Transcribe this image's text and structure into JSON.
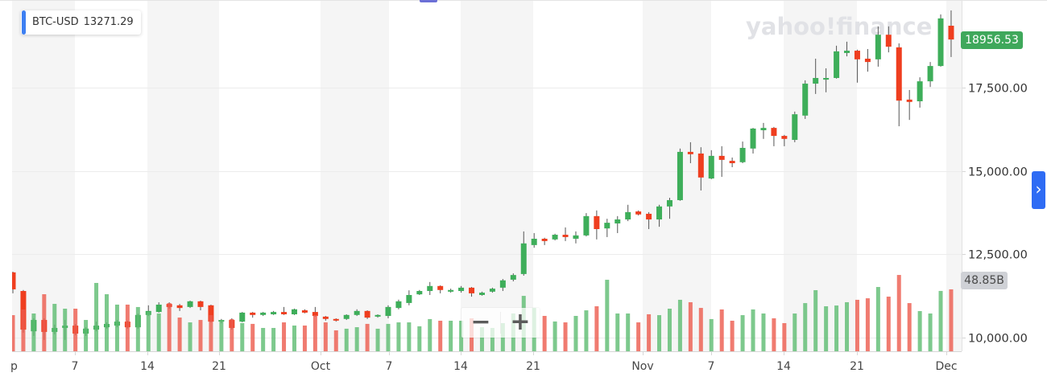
{
  "tooltip": {
    "symbol": "BTC-USD",
    "value": "13271.29"
  },
  "watermark": "yahoo!finance",
  "price_badge": {
    "value": "18956.53"
  },
  "volume_badge": {
    "value": "48.85B"
  },
  "zoom_controls": {
    "zoom_out": "−",
    "zoom_in": "+"
  },
  "nav_button": {
    "icon": "chevron-right-icon",
    "glyph": "›"
  },
  "colors": {
    "up": "#3eae5a",
    "down": "#ef3e1f",
    "wick": "#555555",
    "band": "#f5f5f5",
    "grid": "#ececec",
    "axis": "#d6d6d6",
    "axis_text": "#464646",
    "volume_up": "#5cbb71",
    "volume_down": "#ec5a4c",
    "watermark": "#e1e2e6",
    "price_badge": "#3fa85b",
    "volume_badge": "#cfd1d6",
    "accent": "#3d7ff2",
    "nav_button": "#2f6cf4",
    "top_handle": "#6b6fd6"
  },
  "chart_data": {
    "type": "candlestick",
    "title": "BTC-USD",
    "xlabel": "",
    "ylabel": "",
    "ylim": [
      9589,
      20143
    ],
    "grid": true,
    "legend": {
      "position": "top-left",
      "entries": [
        "BTC-USD 13271.29"
      ]
    },
    "y_ticks": [
      {
        "label": "17,500.00",
        "value": 17500
      },
      {
        "label": "15,000.00",
        "value": 15000
      },
      {
        "label": "12,500.00",
        "value": 12500
      },
      {
        "label": "10,000.00",
        "value": 10000
      }
    ],
    "x_ticks": [
      {
        "label": "p",
        "x": 13,
        "anchor": "start",
        "tick": false
      },
      {
        "label": "7",
        "x": 93
      },
      {
        "label": "14",
        "x": 183
      },
      {
        "label": "21",
        "x": 272
      },
      {
        "label": "Oct",
        "x": 398
      },
      {
        "label": "7",
        "x": 483
      },
      {
        "label": "14",
        "x": 572
      },
      {
        "label": "21",
        "x": 662
      },
      {
        "label": "Nov",
        "x": 798
      },
      {
        "label": "7",
        "x": 883
      },
      {
        "label": "14",
        "x": 973
      },
      {
        "label": "21",
        "x": 1064
      },
      {
        "label": "Dec",
        "x": 1175
      }
    ],
    "last_price": 18956.53,
    "last_volume": "48.85B",
    "series": [
      {
        "name": "BTC-USD",
        "kind": "ohlc",
        "fields": [
          "open",
          "high",
          "low",
          "close"
        ],
        "values": [
          [
            11960,
            11980,
            11330,
            11450
          ],
          [
            11400,
            11430,
            10150,
            10240
          ],
          [
            10190,
            10580,
            10050,
            10530
          ],
          [
            10530,
            10580,
            9930,
            10170
          ],
          [
            10170,
            10390,
            10100,
            10290
          ],
          [
            10290,
            10530,
            9930,
            10360
          ],
          [
            10360,
            10410,
            10070,
            10120
          ],
          [
            10120,
            10310,
            10050,
            10270
          ],
          [
            10240,
            10480,
            10190,
            10360
          ],
          [
            10310,
            10460,
            10270,
            10410
          ],
          [
            10360,
            10530,
            10310,
            10480
          ],
          [
            10480,
            10510,
            10270,
            10310
          ],
          [
            10310,
            10720,
            10270,
            10680
          ],
          [
            10680,
            10970,
            10650,
            10800
          ],
          [
            10770,
            11060,
            10750,
            10990
          ],
          [
            11010,
            11060,
            10870,
            10920
          ],
          [
            10970,
            11010,
            10800,
            10890
          ],
          [
            10920,
            11110,
            10890,
            11090
          ],
          [
            11090,
            11110,
            10820,
            10920
          ],
          [
            10970,
            10990,
            10460,
            10480
          ],
          [
            10480,
            10560,
            10430,
            10530
          ],
          [
            10530,
            10580,
            10240,
            10290
          ],
          [
            10480,
            10770,
            10460,
            10750
          ],
          [
            10750,
            10770,
            10600,
            10680
          ],
          [
            10680,
            10770,
            10650,
            10750
          ],
          [
            10700,
            10800,
            10680,
            10770
          ],
          [
            10770,
            10920,
            10680,
            10700
          ],
          [
            10700,
            10870,
            10680,
            10850
          ],
          [
            10820,
            10850,
            10730,
            10750
          ],
          [
            10770,
            10920,
            10630,
            10650
          ],
          [
            10630,
            10650,
            10510,
            10560
          ],
          [
            10560,
            10580,
            10480,
            10510
          ],
          [
            10560,
            10700,
            10530,
            10680
          ],
          [
            10680,
            10850,
            10650,
            10800
          ],
          [
            10800,
            10820,
            10560,
            10600
          ],
          [
            10630,
            10700,
            10600,
            10680
          ],
          [
            10650,
            10970,
            10580,
            10920
          ],
          [
            10890,
            11140,
            10850,
            11090
          ],
          [
            11040,
            11420,
            10970,
            11280
          ],
          [
            11300,
            11430,
            11280,
            11400
          ],
          [
            11400,
            11670,
            11280,
            11550
          ],
          [
            11550,
            11570,
            11330,
            11430
          ],
          [
            11380,
            11470,
            11350,
            11430
          ],
          [
            11400,
            11550,
            11350,
            11500
          ],
          [
            11500,
            11520,
            11230,
            11330
          ],
          [
            11280,
            11380,
            11260,
            11350
          ],
          [
            11380,
            11500,
            11350,
            11470
          ],
          [
            11500,
            11760,
            11400,
            11720
          ],
          [
            11740,
            11930,
            11690,
            11880
          ],
          [
            11910,
            13190,
            11860,
            12830
          ],
          [
            12780,
            13140,
            12700,
            12970
          ],
          [
            12970,
            13000,
            12780,
            12900
          ],
          [
            12950,
            13120,
            12920,
            13090
          ],
          [
            13090,
            13310,
            12900,
            13020
          ],
          [
            12970,
            13190,
            12830,
            13070
          ],
          [
            13070,
            13740,
            13040,
            13650
          ],
          [
            13650,
            13820,
            12950,
            13260
          ],
          [
            13280,
            13570,
            13020,
            13450
          ],
          [
            13430,
            13650,
            13140,
            13550
          ],
          [
            13550,
            13990,
            13500,
            13770
          ],
          [
            13790,
            13820,
            13670,
            13700
          ],
          [
            13720,
            13770,
            13260,
            13550
          ],
          [
            13550,
            13990,
            13330,
            13940
          ],
          [
            13940,
            14200,
            13570,
            14130
          ],
          [
            14130,
            15680,
            14110,
            15580
          ],
          [
            15580,
            15870,
            15240,
            15510
          ],
          [
            15530,
            15720,
            14420,
            14810
          ],
          [
            14780,
            15630,
            14760,
            15460
          ],
          [
            15460,
            15750,
            14830,
            15340
          ],
          [
            15310,
            15410,
            15120,
            15240
          ],
          [
            15270,
            15890,
            15240,
            15700
          ],
          [
            15680,
            16300,
            15530,
            16280
          ],
          [
            16230,
            16450,
            15970,
            16300
          ],
          [
            16300,
            16330,
            15750,
            16060
          ],
          [
            16060,
            16090,
            15750,
            15970
          ],
          [
            15940,
            16790,
            15870,
            16710
          ],
          [
            16670,
            17730,
            16570,
            17630
          ],
          [
            17630,
            18380,
            17320,
            17800
          ],
          [
            17750,
            18090,
            17370,
            17800
          ],
          [
            17800,
            18770,
            17780,
            18600
          ],
          [
            18550,
            18890,
            18450,
            18620
          ],
          [
            18620,
            18650,
            17660,
            18360
          ],
          [
            18380,
            18670,
            17990,
            18280
          ],
          [
            18360,
            19350,
            18140,
            19100
          ],
          [
            19100,
            19350,
            18570,
            18740
          ],
          [
            18720,
            18840,
            16350,
            17120
          ],
          [
            17150,
            17440,
            16540,
            17080
          ],
          [
            17100,
            17820,
            16910,
            17700
          ],
          [
            17700,
            18280,
            17530,
            18160
          ],
          [
            18160,
            19710,
            18140,
            19590
          ],
          [
            19370,
            19830,
            18430,
            18956.53
          ]
        ]
      },
      {
        "name": "Volume",
        "kind": "bar",
        "unit": "B",
        "values": [
          28.5,
          33.0,
          29.8,
          45.0,
          37.4,
          33.6,
          33.6,
          24.7,
          53.9,
          45.0,
          36.8,
          36.8,
          34.9,
          31.1,
          29.8,
          38.0,
          26.6,
          22.8,
          24.7,
          28.5,
          24.7,
          25.4,
          22.2,
          21.6,
          18.4,
          18.4,
          22.8,
          20.3,
          20.3,
          28.5,
          22.8,
          16.5,
          17.8,
          19.0,
          21.6,
          17.8,
          21.6,
          22.8,
          22.8,
          19.7,
          25.4,
          24.1,
          24.1,
          24.1,
          26.0,
          19.0,
          18.4,
          22.2,
          29.8,
          43.7,
          34.2,
          27.9,
          23.5,
          22.8,
          27.9,
          32.3,
          35.5,
          56.4,
          29.8,
          29.8,
          22.8,
          29.2,
          28.5,
          33.6,
          40.6,
          38.7,
          34.2,
          25.4,
          33.0,
          24.1,
          28.5,
          33.0,
          29.8,
          26.0,
          22.2,
          29.8,
          38.0,
          48.2,
          35.5,
          36.1,
          38.7,
          40.6,
          41.8,
          50.7,
          43.1,
          60.2,
          38.0,
          31.7,
          29.8,
          47.6,
          48.85
        ]
      }
    ]
  }
}
